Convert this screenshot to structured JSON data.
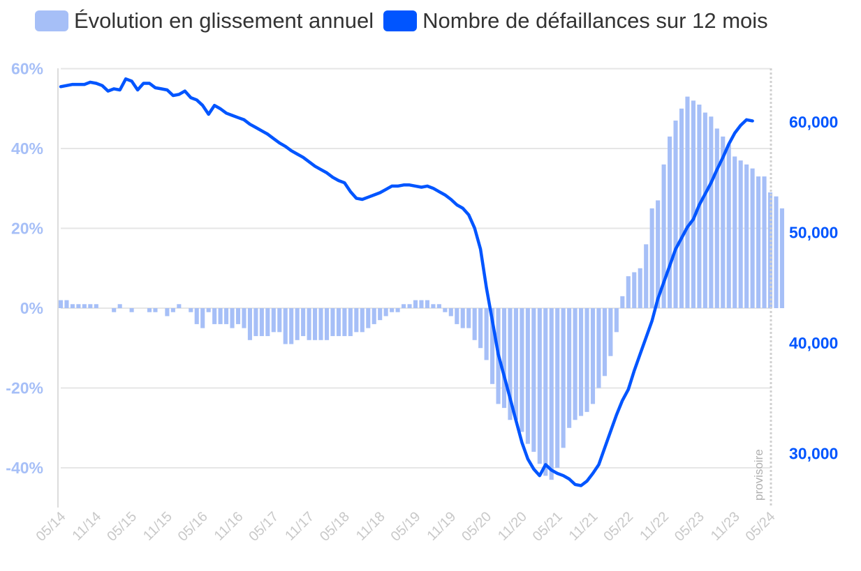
{
  "colors": {
    "bars": "#a6bff7",
    "line": "#0055ff",
    "left_axis_text": "#a6bff7",
    "right_axis_text": "#0055ff",
    "grid": "#e6e6e6",
    "x_tick_text": "#c8c8c8",
    "provisional_line": "#d0d0d0"
  },
  "legend": [
    {
      "label": "Évolution en glissement annuel",
      "color": "#a6bff7"
    },
    {
      "label": "Nombre de défaillances sur 12 mois",
      "color": "#0055ff"
    }
  ],
  "annotation": "provisoire",
  "chart_data": {
    "type": "bar+line",
    "x_ticks": [
      "05/14",
      "11/14",
      "05/15",
      "11/15",
      "05/16",
      "11/16",
      "05/17",
      "11/17",
      "05/18",
      "11/18",
      "05/19",
      "11/19",
      "05/20",
      "11/20",
      "05/21",
      "11/21",
      "05/22",
      "11/22",
      "05/23",
      "11/23",
      "05/24"
    ],
    "left_axis": {
      "ticks": [
        "60%",
        "40%",
        "20%",
        "0%",
        "-20%",
        "-40%"
      ],
      "range": [
        -50,
        60
      ]
    },
    "right_axis": {
      "ticks": [
        "60,000",
        "50,000",
        "40,000",
        "30,000"
      ],
      "range": [
        25000,
        65000
      ]
    },
    "series": [
      {
        "name": "Évolution en glissement annuel",
        "type": "bar",
        "axis": "left",
        "start": "05/14",
        "values": [
          2,
          2,
          1,
          1,
          1,
          1,
          1,
          0,
          0,
          -1,
          1,
          0,
          -1,
          0,
          0,
          -1,
          -1,
          0,
          -2,
          -1,
          1,
          0,
          -1,
          -4,
          -5,
          -1,
          -4,
          -4,
          -4,
          -5,
          -4,
          -5,
          -8,
          -7,
          -7,
          -7,
          -6,
          -6,
          -9,
          -9,
          -8,
          -7,
          -8,
          -8,
          -8,
          -8,
          -7,
          -7,
          -7,
          -7,
          -6,
          -6,
          -5,
          -4,
          -3,
          -2,
          -1,
          -1,
          1,
          1,
          2,
          2,
          2,
          1,
          1,
          -1,
          -2,
          -4,
          -5,
          -5,
          -8,
          -10,
          -13,
          -19,
          -24,
          -25,
          -28,
          -28,
          -31,
          -34,
          -36,
          -39,
          -42,
          -43,
          -40,
          -35,
          -30,
          -28,
          -27,
          -26,
          -24,
          -20,
          -17,
          -12,
          -6,
          3,
          8,
          9,
          10,
          16,
          25,
          27,
          36,
          43,
          47,
          50,
          53,
          52,
          51,
          49,
          48,
          45,
          43,
          41,
          38,
          37,
          36,
          35,
          33,
          33,
          29,
          28,
          25
        ]
      },
      {
        "name": "Nombre de défaillances sur 12 mois",
        "type": "line",
        "axis": "right",
        "start": "05/14",
        "values": [
          63200,
          63300,
          63400,
          63400,
          63400,
          63600,
          63500,
          63300,
          62800,
          63000,
          62900,
          63900,
          63700,
          62900,
          63500,
          63500,
          63100,
          63000,
          62900,
          62400,
          62500,
          62800,
          62200,
          62000,
          61500,
          60700,
          61500,
          61200,
          60800,
          60600,
          60400,
          60200,
          59800,
          59500,
          59200,
          58900,
          58500,
          58100,
          57800,
          57400,
          57100,
          56800,
          56400,
          56000,
          55700,
          55400,
          55000,
          54700,
          54500,
          53700,
          53100,
          53000,
          53200,
          53400,
          53600,
          53900,
          54200,
          54200,
          54300,
          54300,
          54200,
          54100,
          54200,
          54000,
          53700,
          53400,
          53000,
          52500,
          52200,
          51600,
          50400,
          48500,
          45000,
          42000,
          39000,
          37000,
          35000,
          33000,
          31000,
          29500,
          28600,
          28000,
          29000,
          28500,
          28200,
          28000,
          27700,
          27200,
          27100,
          27500,
          28200,
          29000,
          30500,
          32000,
          33500,
          34800,
          35800,
          37500,
          39000,
          40500,
          42000,
          44000,
          45500,
          47000,
          48500,
          49500,
          50500,
          51200,
          52500,
          53500,
          54500,
          55700,
          56800,
          58000,
          59000,
          59700,
          60200,
          60100
        ]
      }
    ]
  }
}
